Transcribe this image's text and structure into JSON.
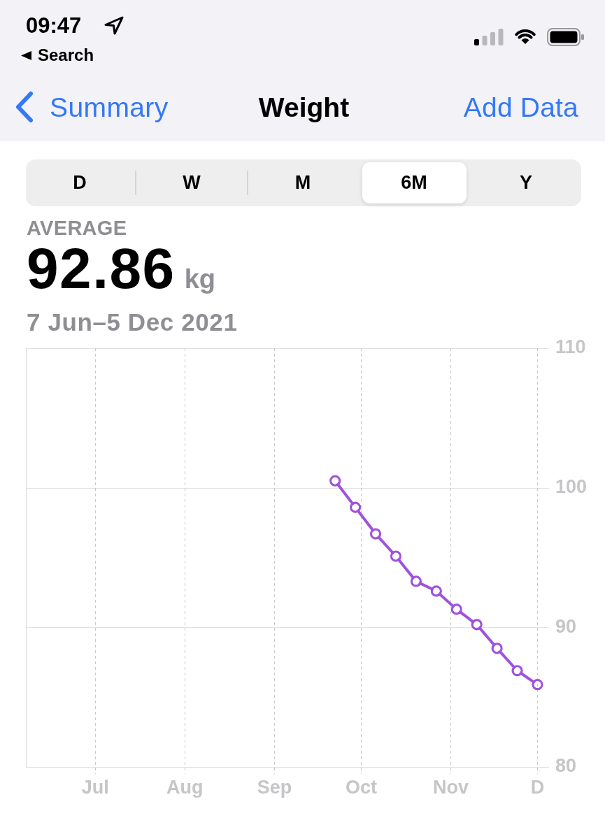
{
  "chart_data": {
    "type": "line",
    "title": "Weight",
    "subtitle": "7 Jun–5 Dec 2021",
    "annotations": [
      "09:47",
      "Search",
      "Summary",
      "Add Data",
      "D",
      "W",
      "M",
      "6M",
      "Y",
      "AVERAGE",
      "92.86",
      "kg"
    ],
    "x": [
      "2021-09-22",
      "2021-09-29",
      "2021-10-06",
      "2021-10-13",
      "2021-10-20",
      "2021-10-27",
      "2021-11-03",
      "2021-11-10",
      "2021-11-17",
      "2021-11-24",
      "2021-12-01"
    ],
    "series": [
      {
        "color": "#a052dc",
        "values": [
          100.5,
          98.6,
          96.7,
          95.1,
          93.3,
          92.6,
          91.3,
          90.2,
          88.5,
          86.9,
          85.9
        ]
      }
    ],
    "xlim": [
      "2021-06-07",
      "2021-12-05"
    ],
    "xticks": [
      {
        "value": "2021-07-01",
        "label": "Jul"
      },
      {
        "value": "2021-08-01",
        "label": "Aug"
      },
      {
        "value": "2021-09-01",
        "label": "Sep"
      },
      {
        "value": "2021-10-01",
        "label": "Oct"
      },
      {
        "value": "2021-11-01",
        "label": "Nov"
      },
      {
        "value": "2021-12-01",
        "label": "D"
      }
    ],
    "ylim": [
      80,
      110
    ],
    "yticks": [
      80,
      90,
      100,
      110
    ],
    "grid": true,
    "marker": "circle",
    "line_style": "solid"
  }
}
